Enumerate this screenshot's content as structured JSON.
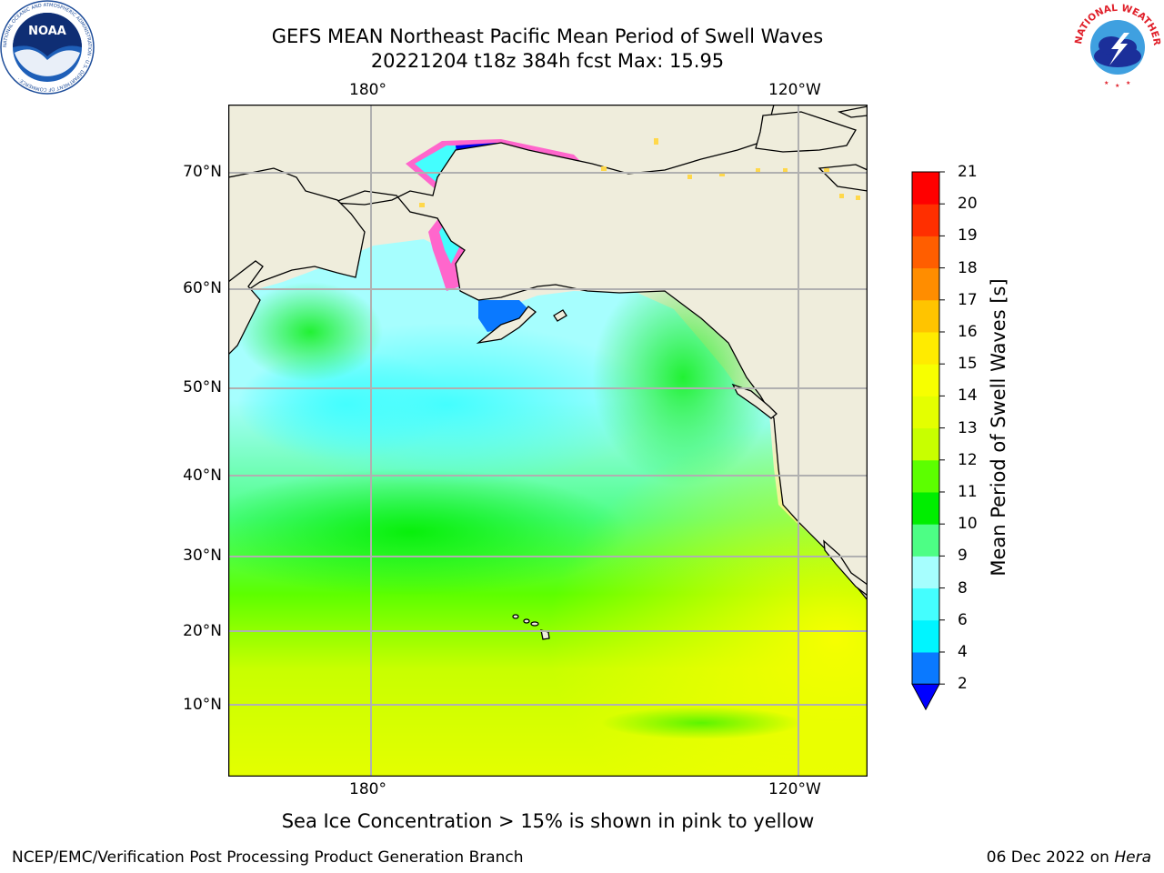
{
  "header": {
    "title_line1": "GEFS MEAN Northeast Pacific Mean Period of Swell Waves",
    "title_line2": "20221204 t18z 384h fcst   Max: 15.95"
  },
  "logos": {
    "noaa_text": "NOAA",
    "noaa_ring": "NATIONAL OCEANIC AND ATMOSPHERIC ADMINISTRATION · U.S. DEPARTMENT OF COMMERCE ·",
    "nws_ring": "NATIONAL WEATHER SERVICE"
  },
  "map": {
    "lon_labels_top": [
      "180°",
      "120°W"
    ],
    "lon_labels_bottom": [
      "180°",
      "120°W"
    ],
    "lat_labels": [
      "70°N",
      "60°N",
      "50°N",
      "40°N",
      "30°N",
      "20°N",
      "10°N"
    ],
    "colors": {
      "land": "#efeddc",
      "grid": "#b0b0b0"
    }
  },
  "colorbar": {
    "label": "Mean Period of Swell Waves [s]",
    "ticks": [
      "2",
      "4",
      "6",
      "8",
      "9",
      "10",
      "11",
      "12",
      "13",
      "14",
      "15",
      "16",
      "17",
      "18",
      "19",
      "20",
      "21"
    ],
    "colors": [
      "#0a79ff",
      "#00f5ff",
      "#44fefe",
      "#a6fefe",
      "#4dfe85",
      "#00ee00",
      "#5cff00",
      "#c8ff00",
      "#e4ff00",
      "#f7ff00",
      "#ffeb00",
      "#ffc400",
      "#ff8d00",
      "#ff5e00",
      "#ff2f00",
      "#ff0000"
    ],
    "under_color": "#0000ff"
  },
  "caption": "Sea Ice Concentration > 15% is shown in pink to yellow",
  "footer": {
    "left": "NCEP/EMC/Verification Post Processing Product Generation Branch",
    "right_date": "06 Dec 2022 on ",
    "right_host": "Hera"
  }
}
